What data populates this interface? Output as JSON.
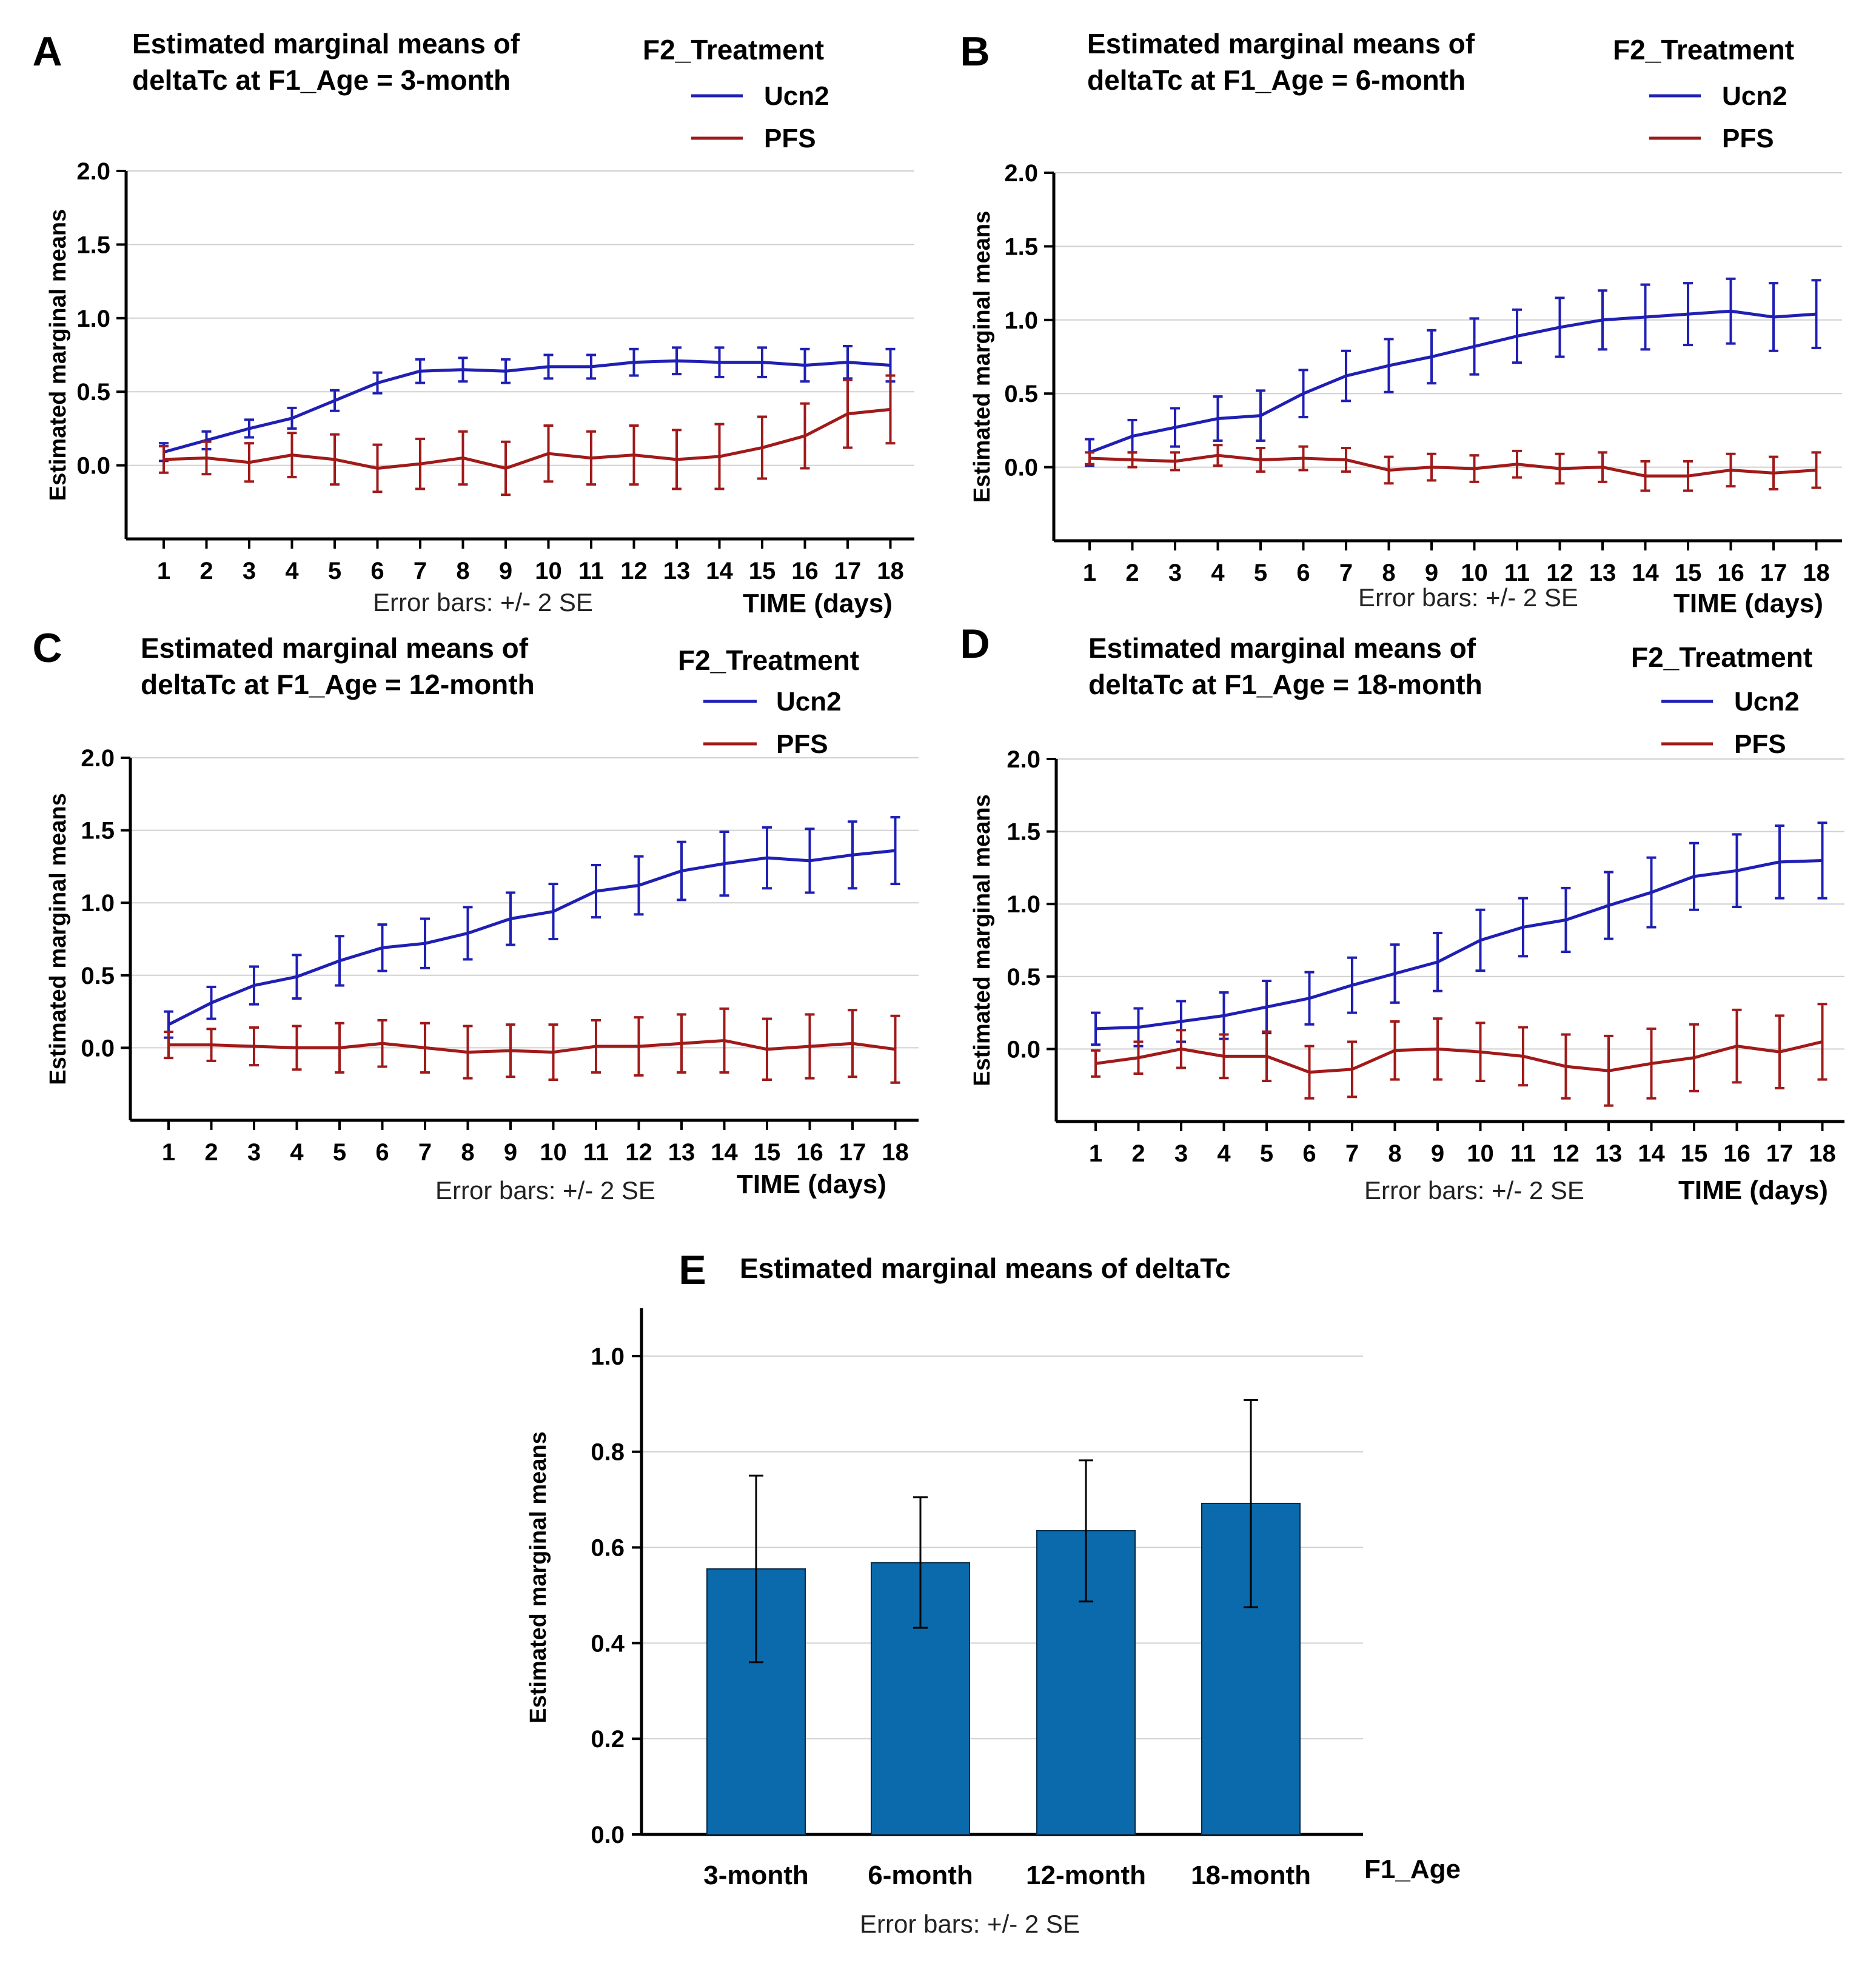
{
  "error_bar_note": "Error bars: +/- 2 SE",
  "legend_title": "F2_Treatment",
  "x_axis_title": "TIME (days)",
  "y_axis_title": "Estimated marginal means",
  "chart_data": [
    {
      "panel": "A",
      "type": "line",
      "title": [
        "Estimated marginal means of",
        "deltaTc at F1_Age = 3-month"
      ],
      "ylim": [
        -0.5,
        2.0
      ],
      "yticks": [
        "0.0",
        "0.5",
        "1.0",
        "1.5",
        "2.0"
      ],
      "x": [
        "1",
        "2",
        "3",
        "4",
        "5",
        "6",
        "7",
        "8",
        "9",
        "10",
        "11",
        "12",
        "13",
        "14",
        "15",
        "16",
        "17",
        "18"
      ],
      "series": [
        {
          "name": "Ucn2",
          "color": "#1f1fb4",
          "values": [
            0.09,
            0.17,
            0.25,
            0.32,
            0.44,
            0.56,
            0.64,
            0.65,
            0.64,
            0.67,
            0.67,
            0.7,
            0.71,
            0.7,
            0.7,
            0.68,
            0.7,
            0.68
          ],
          "errors": [
            0.06,
            0.06,
            0.06,
            0.07,
            0.07,
            0.07,
            0.08,
            0.08,
            0.08,
            0.08,
            0.08,
            0.09,
            0.09,
            0.1,
            0.1,
            0.11,
            0.11,
            0.11
          ]
        },
        {
          "name": "PFS",
          "color": "#a01a1a",
          "values": [
            0.04,
            0.05,
            0.02,
            0.07,
            0.04,
            -0.02,
            0.01,
            0.05,
            -0.02,
            0.08,
            0.05,
            0.07,
            0.04,
            0.06,
            0.12,
            0.2,
            0.35,
            0.38
          ],
          "errors": [
            0.09,
            0.11,
            0.13,
            0.15,
            0.17,
            0.16,
            0.17,
            0.18,
            0.18,
            0.19,
            0.18,
            0.2,
            0.2,
            0.22,
            0.21,
            0.22,
            0.23,
            0.23
          ]
        }
      ]
    },
    {
      "panel": "B",
      "type": "line",
      "title": [
        "Estimated marginal means of",
        "deltaTc at F1_Age = 6-month"
      ],
      "ylim": [
        -0.5,
        2.0
      ],
      "yticks": [
        "0.0",
        "0.5",
        "1.0",
        "1.5",
        "2.0"
      ],
      "x": [
        "1",
        "2",
        "3",
        "4",
        "5",
        "6",
        "7",
        "8",
        "9",
        "10",
        "11",
        "12",
        "13",
        "14",
        "15",
        "16",
        "17",
        "18"
      ],
      "series": [
        {
          "name": "Ucn2",
          "color": "#1f1fb4",
          "values": [
            0.1,
            0.21,
            0.27,
            0.33,
            0.35,
            0.5,
            0.62,
            0.69,
            0.75,
            0.82,
            0.89,
            0.95,
            1.0,
            1.02,
            1.04,
            1.06,
            1.02,
            1.04
          ],
          "errors": [
            0.09,
            0.11,
            0.13,
            0.15,
            0.17,
            0.16,
            0.17,
            0.18,
            0.18,
            0.19,
            0.18,
            0.2,
            0.2,
            0.22,
            0.21,
            0.22,
            0.23,
            0.23
          ]
        },
        {
          "name": "PFS",
          "color": "#a01a1a",
          "values": [
            0.06,
            0.05,
            0.04,
            0.08,
            0.05,
            0.06,
            0.05,
            -0.02,
            0.0,
            -0.01,
            0.02,
            -0.01,
            0.0,
            -0.06,
            -0.06,
            -0.02,
            -0.04,
            -0.02
          ],
          "errors": [
            0.04,
            0.05,
            0.06,
            0.07,
            0.08,
            0.08,
            0.08,
            0.09,
            0.09,
            0.09,
            0.09,
            0.1,
            0.1,
            0.1,
            0.1,
            0.11,
            0.11,
            0.12
          ]
        }
      ]
    },
    {
      "panel": "C",
      "type": "line",
      "title": [
        "Estimated marginal means of",
        "deltaTc at F1_Age = 12-month"
      ],
      "ylim": [
        -0.5,
        2.0
      ],
      "yticks": [
        "0.0",
        "0.5",
        "1.0",
        "1.5",
        "2.0"
      ],
      "x": [
        "1",
        "2",
        "3",
        "4",
        "5",
        "6",
        "7",
        "8",
        "9",
        "10",
        "11",
        "12",
        "13",
        "14",
        "15",
        "16",
        "17",
        "18"
      ],
      "series": [
        {
          "name": "Ucn2",
          "color": "#1f1fb4",
          "values": [
            0.16,
            0.31,
            0.43,
            0.49,
            0.6,
            0.69,
            0.72,
            0.79,
            0.89,
            0.94,
            1.08,
            1.12,
            1.22,
            1.27,
            1.31,
            1.29,
            1.33,
            1.36
          ],
          "errors": [
            0.09,
            0.11,
            0.13,
            0.15,
            0.17,
            0.16,
            0.17,
            0.18,
            0.18,
            0.19,
            0.18,
            0.2,
            0.2,
            0.22,
            0.21,
            0.22,
            0.23,
            0.23
          ]
        },
        {
          "name": "PFS",
          "color": "#a01a1a",
          "values": [
            0.02,
            0.02,
            0.01,
            0.0,
            0.0,
            0.03,
            0.0,
            -0.03,
            -0.02,
            -0.03,
            0.01,
            0.01,
            0.03,
            0.05,
            -0.01,
            0.01,
            0.03,
            -0.01
          ],
          "errors": [
            0.09,
            0.11,
            0.13,
            0.15,
            0.17,
            0.16,
            0.17,
            0.18,
            0.18,
            0.19,
            0.18,
            0.2,
            0.2,
            0.22,
            0.21,
            0.22,
            0.23,
            0.23
          ]
        }
      ]
    },
    {
      "panel": "D",
      "type": "line",
      "title": [
        "Estimated marginal means of",
        "deltaTc at F1_Age = 18-month"
      ],
      "ylim": [
        -0.5,
        2.0
      ],
      "yticks": [
        "0.0",
        "0.5",
        "1.0",
        "1.5",
        "2.0"
      ],
      "x": [
        "1",
        "2",
        "3",
        "4",
        "5",
        "6",
        "7",
        "8",
        "9",
        "10",
        "11",
        "12",
        "13",
        "14",
        "15",
        "16",
        "17",
        "18"
      ],
      "series": [
        {
          "name": "Ucn2",
          "color": "#1f1fb4",
          "values": [
            0.14,
            0.15,
            0.19,
            0.23,
            0.29,
            0.35,
            0.44,
            0.52,
            0.6,
            0.75,
            0.84,
            0.89,
            0.99,
            1.08,
            1.19,
            1.23,
            1.29,
            1.3
          ],
          "errors": [
            0.11,
            0.13,
            0.14,
            0.16,
            0.18,
            0.18,
            0.19,
            0.2,
            0.2,
            0.21,
            0.2,
            0.22,
            0.23,
            0.24,
            0.23,
            0.25,
            0.25,
            0.26
          ]
        },
        {
          "name": "PFS",
          "color": "#a01a1a",
          "values": [
            -0.1,
            -0.06,
            0.0,
            -0.05,
            -0.05,
            -0.16,
            -0.14,
            -0.01,
            0.0,
            -0.02,
            -0.05,
            -0.12,
            -0.15,
            -0.1,
            -0.06,
            0.02,
            -0.02,
            0.05
          ],
          "errors": [
            0.09,
            0.11,
            0.13,
            0.15,
            0.17,
            0.18,
            0.19,
            0.2,
            0.21,
            0.2,
            0.2,
            0.22,
            0.24,
            0.24,
            0.23,
            0.25,
            0.25,
            0.26
          ]
        }
      ]
    },
    {
      "panel": "E",
      "type": "bar",
      "title": [
        "Estimated marginal means of deltaTc"
      ],
      "xlabel": "F1_Age",
      "ylim": [
        0.0,
        1.1
      ],
      "yticks": [
        "0.0",
        "0.2",
        "0.4",
        "0.6",
        "0.8",
        "1.0"
      ],
      "categories": [
        "3-month",
        "6-month",
        "12-month",
        "18-month"
      ],
      "values": [
        0.555,
        0.568,
        0.635,
        0.692
      ],
      "err_low": [
        0.36,
        0.432,
        0.487,
        0.475
      ],
      "err_high": [
        0.75,
        0.705,
        0.782,
        0.908
      ],
      "color": "#0a6aab"
    }
  ]
}
